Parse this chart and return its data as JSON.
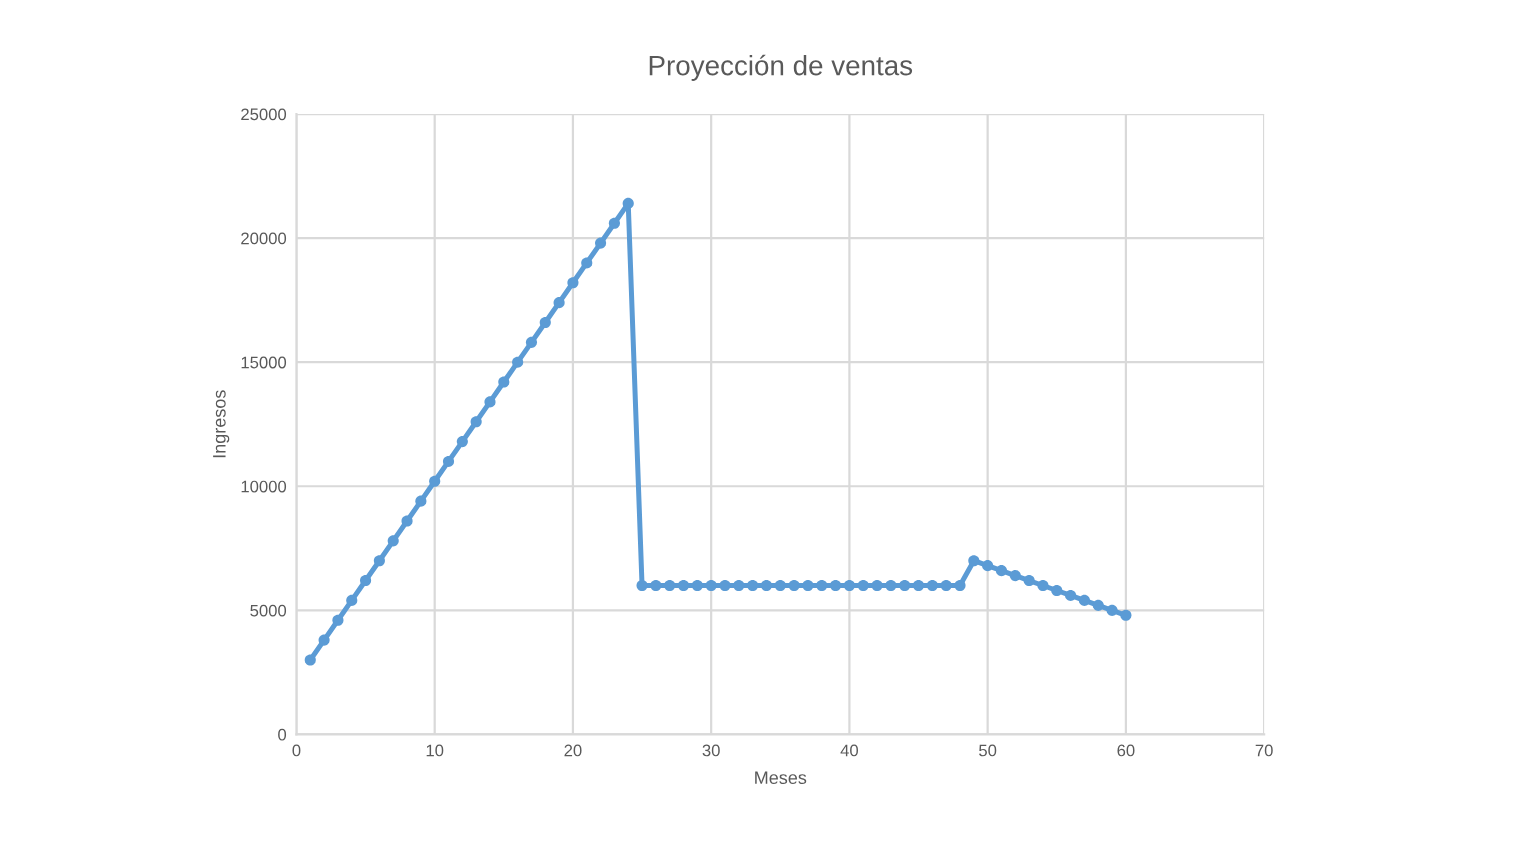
{
  "chart_data": {
    "type": "line",
    "title": "Proyección de ventas",
    "xlabel": "Meses",
    "ylabel": "Ingresos",
    "x": [
      1,
      2,
      3,
      4,
      5,
      6,
      7,
      8,
      9,
      10,
      11,
      12,
      13,
      14,
      15,
      16,
      17,
      18,
      19,
      20,
      21,
      22,
      23,
      24,
      25,
      26,
      27,
      28,
      29,
      30,
      31,
      32,
      33,
      34,
      35,
      36,
      37,
      38,
      39,
      40,
      41,
      42,
      43,
      44,
      45,
      46,
      47,
      48,
      49,
      50,
      51,
      52,
      53,
      54,
      55,
      56,
      57,
      58,
      59,
      60
    ],
    "series": [
      {
        "color": "#5b9bd5",
        "values": [
          3000,
          3800,
          4600,
          5400,
          6200,
          7000,
          7800,
          8600,
          9400,
          10200,
          11000,
          11800,
          12600,
          13400,
          14200,
          15000,
          15800,
          16600,
          17400,
          18200,
          19000,
          19800,
          20600,
          21400,
          6000,
          6000,
          6000,
          6000,
          6000,
          6000,
          6000,
          6000,
          6000,
          6000,
          6000,
          6000,
          6000,
          6000,
          6000,
          6000,
          6000,
          6000,
          6000,
          6000,
          6000,
          6000,
          6000,
          6000,
          7000,
          6800,
          6600,
          6400,
          6200,
          6000,
          5800,
          5600,
          5400,
          5200,
          5000,
          4800
        ]
      }
    ],
    "xlim": [
      0,
      70
    ],
    "xticks": [
      0,
      10,
      20,
      30,
      40,
      50,
      60,
      70
    ],
    "ylim": [
      0,
      25000
    ],
    "yticks": [
      0,
      5000,
      10000,
      15000,
      20000,
      25000
    ],
    "grid": true,
    "marker": "circle",
    "line_style": "solid",
    "legend": false
  }
}
